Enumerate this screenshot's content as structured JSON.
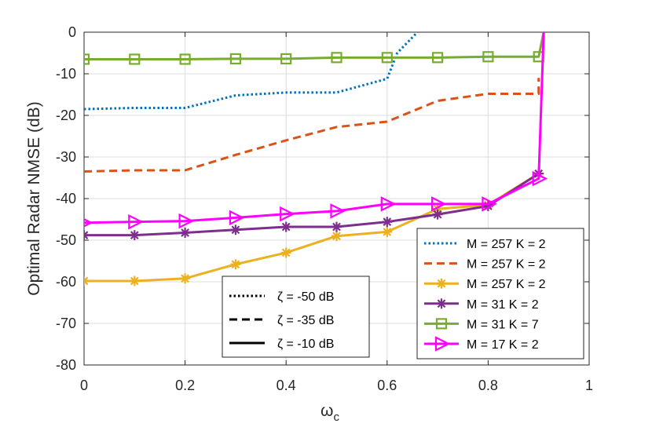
{
  "chart_data": {
    "type": "line",
    "title": "",
    "xlabel": "ω",
    "xlabel_sub": "c",
    "ylabel": "Optimal Radar NMSE (dB)",
    "xlim": [
      0,
      1
    ],
    "ylim": [
      -80,
      0
    ],
    "xticks": [
      0,
      0.2,
      0.4,
      0.6,
      0.8,
      1
    ],
    "xtick_labels": [
      "0",
      "0.2",
      "0.4",
      "0.6",
      "0.8",
      "1"
    ],
    "yticks": [
      0,
      -10,
      -20,
      -30,
      -40,
      -50,
      -60,
      -70,
      -80
    ],
    "ytick_labels": [
      "0",
      "-10",
      "-20",
      "-30",
      "-40",
      "-50",
      "-60",
      "-70",
      "-80"
    ],
    "grid": true,
    "legend_placement": "bottom-right",
    "series": [
      {
        "name": "M = 257 K = 2",
        "color": "#0072BD",
        "dash": "dotted",
        "marker": "none",
        "x": [
          0,
          0.1,
          0.2,
          0.3,
          0.4,
          0.5,
          0.6,
          0.62,
          0.66
        ],
        "y": [
          -18.5,
          -18.2,
          -18.2,
          -15.2,
          -14.5,
          -14.5,
          -11.2,
          -5,
          0
        ]
      },
      {
        "name": "M = 257 K = 2",
        "color": "#D95319",
        "dash": "dashed",
        "marker": "none",
        "x": [
          0,
          0.1,
          0.2,
          0.3,
          0.4,
          0.5,
          0.6,
          0.7,
          0.8,
          0.9,
          0.9
        ],
        "y": [
          -33.5,
          -33.2,
          -33.2,
          -29.5,
          -26,
          -22.8,
          -21.5,
          -16.5,
          -14.8,
          -14.8,
          -11
        ]
      },
      {
        "name": "M = 257 K = 2",
        "color": "#EDB120",
        "dash": "solid",
        "marker": "asterisk",
        "x": [
          0,
          0.1,
          0.2,
          0.3,
          0.4,
          0.5,
          0.6,
          0.7,
          0.8,
          0.9
        ],
        "y": [
          -59.8,
          -59.8,
          -59.2,
          -55.8,
          -53,
          -49,
          -48,
          -42.5,
          -41.5,
          -34
        ]
      },
      {
        "name": "M = 31 K = 2",
        "color": "#7E2F8E",
        "dash": "solid",
        "marker": "asterisk",
        "x": [
          0,
          0.1,
          0.2,
          0.3,
          0.4,
          0.5,
          0.6,
          0.7,
          0.8,
          0.9
        ],
        "y": [
          -48.8,
          -48.8,
          -48.2,
          -47.5,
          -46.8,
          -46.8,
          -45.6,
          -43.8,
          -41.8,
          -34
        ]
      },
      {
        "name": "M = 31 K = 7",
        "color": "#77AC30",
        "dash": "solid",
        "marker": "square",
        "x": [
          0,
          0.1,
          0.2,
          0.3,
          0.4,
          0.5,
          0.6,
          0.7,
          0.8,
          0.9,
          0.91
        ],
        "y": [
          -6.5,
          -6.5,
          -6.5,
          -6.4,
          -6.4,
          -6.1,
          -6.1,
          -6.1,
          -5.9,
          -5.9,
          0
        ]
      },
      {
        "name": "M = 17 K = 2",
        "color": "#FF00FF",
        "dash": "solid",
        "marker": "triangle-right",
        "x": [
          0,
          0.1,
          0.2,
          0.3,
          0.4,
          0.5,
          0.6,
          0.7,
          0.8,
          0.9,
          0.91
        ],
        "y": [
          -45.8,
          -45.6,
          -45.4,
          -44.6,
          -43.7,
          -43,
          -41.3,
          -41.3,
          -41.3,
          -35.2,
          0
        ]
      }
    ],
    "style_legend": [
      {
        "label": "ζ = -50 dB",
        "dash": "dotted"
      },
      {
        "label": "ζ = -35 dB",
        "dash": "dashed"
      },
      {
        "label": "ζ = -10 dB",
        "dash": "solid"
      }
    ]
  }
}
